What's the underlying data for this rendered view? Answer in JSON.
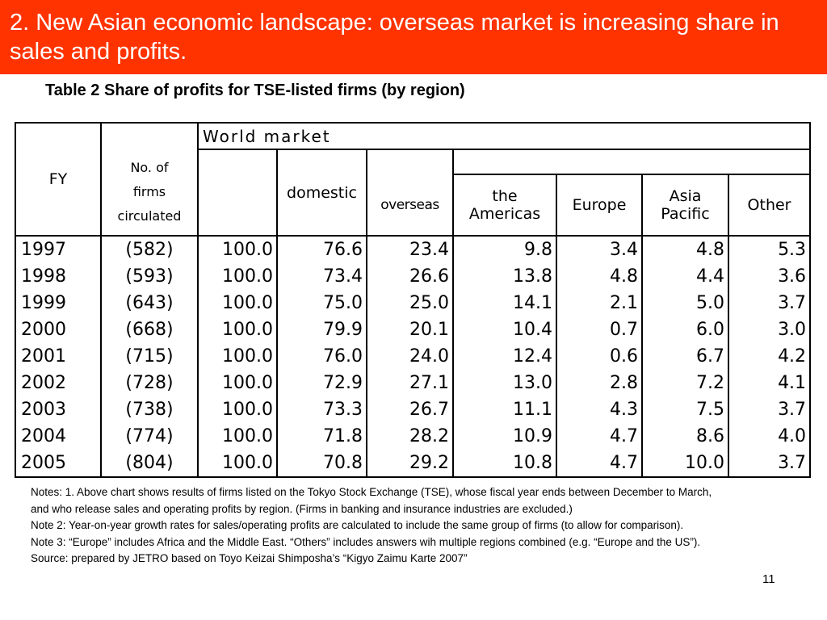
{
  "slide": {
    "title": "2. New Asian economic landscape: overseas market is increasing share in sales and profits.",
    "banner_color": "#ff3300",
    "page_number": "11"
  },
  "table": {
    "caption": "Table 2 Share of profits for TSE-listed firms (by region)",
    "headers": {
      "fy": "FY",
      "firms": [
        "No. of",
        "firms",
        "circulated"
      ],
      "world_market": "World market",
      "domestic": "domestic",
      "overseas": "overseas",
      "americas": [
        "the",
        "Americas"
      ],
      "europe": "Europe",
      "asia_pacific": [
        "Asia",
        "Pacific"
      ],
      "other": "Other"
    },
    "rows": [
      [
        "1997",
        "(582)",
        "100.0",
        "76.6",
        "23.4",
        "9.8",
        "3.4",
        "4.8",
        "5.3"
      ],
      [
        "1998",
        "(593)",
        "100.0",
        "73.4",
        "26.6",
        "13.8",
        "4.8",
        "4.4",
        "3.6"
      ],
      [
        "1999",
        "(643)",
        "100.0",
        "75.0",
        "25.0",
        "14.1",
        "2.1",
        "5.0",
        "3.7"
      ],
      [
        "2000",
        "(668)",
        "100.0",
        "79.9",
        "20.1",
        "10.4",
        "0.7",
        "6.0",
        "3.0"
      ],
      [
        "2001",
        "(715)",
        "100.0",
        "76.0",
        "24.0",
        "12.4",
        "0.6",
        "6.7",
        "4.2"
      ],
      [
        "2002",
        "(728)",
        "100.0",
        "72.9",
        "27.1",
        "13.0",
        "2.8",
        "7.2",
        "4.1"
      ],
      [
        "2003",
        "(738)",
        "100.0",
        "73.3",
        "26.7",
        "11.1",
        "4.3",
        "7.5",
        "3.7"
      ],
      [
        "2004",
        "(774)",
        "100.0",
        "71.8",
        "28.2",
        "10.9",
        "4.7",
        "8.6",
        "4.0"
      ],
      [
        "2005",
        "(804)",
        "100.0",
        "70.8",
        "29.2",
        "10.8",
        "4.7",
        "10.0",
        "3.7"
      ]
    ]
  },
  "notes": [
    "Notes: 1. Above chart shows results of firms listed on the Tokyo Stock Exchange (TSE), whose fiscal year ends between December to March, and who release sales and operating profits by region. (Firms in banking and insurance industries are excluded.)",
    "Note 2: Year-on-year growth rates for sales/operating profits are calculated to include the same group of firms (to allow for comparison).",
    "Note 3: “Europe” includes Africa and the Middle East. “Others” includes answers wih multiple regions combined (e.g. “Europe and the US”).",
    "Source: prepared by JETRO based on Toyo Keizai Shimposha’s “Kigyo Zaimu Karte 2007”"
  ]
}
